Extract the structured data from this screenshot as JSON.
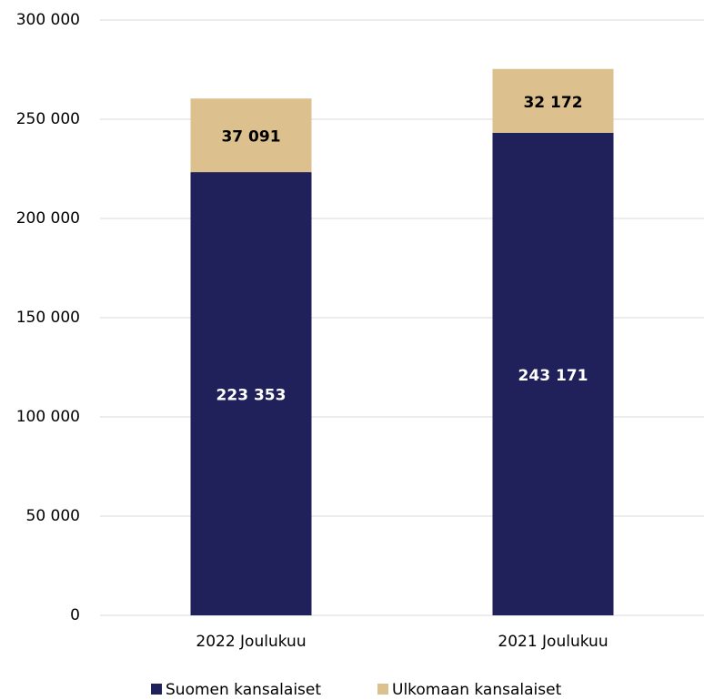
{
  "chart_data": {
    "type": "stacked_bar",
    "categories": [
      "2022 Joulukuu",
      "2021 Joulukuu"
    ],
    "series": [
      {
        "name": "Suomen kansalaiset",
        "color": "#20205a",
        "values": [
          223353,
          243171
        ],
        "value_labels": [
          "223 353",
          "243 171"
        ]
      },
      {
        "name": "Ulkomaan kansalaiset",
        "color": "#dcc08e",
        "values": [
          37091,
          32172
        ],
        "value_labels": [
          "37 091",
          "32 172"
        ]
      }
    ],
    "ylim": [
      0,
      300000
    ],
    "yticks": [
      0,
      {
        "value": 50000,
        "label": "50 000"
      },
      {
        "value": 100000,
        "label": "100 000"
      },
      {
        "value": 150000,
        "label": "150 000"
      },
      {
        "value": 200000,
        "label": "200 000"
      },
      {
        "value": 250000,
        "label": "250 000"
      },
      {
        "value": 300000,
        "label": "300 000"
      }
    ],
    "grid": true
  }
}
